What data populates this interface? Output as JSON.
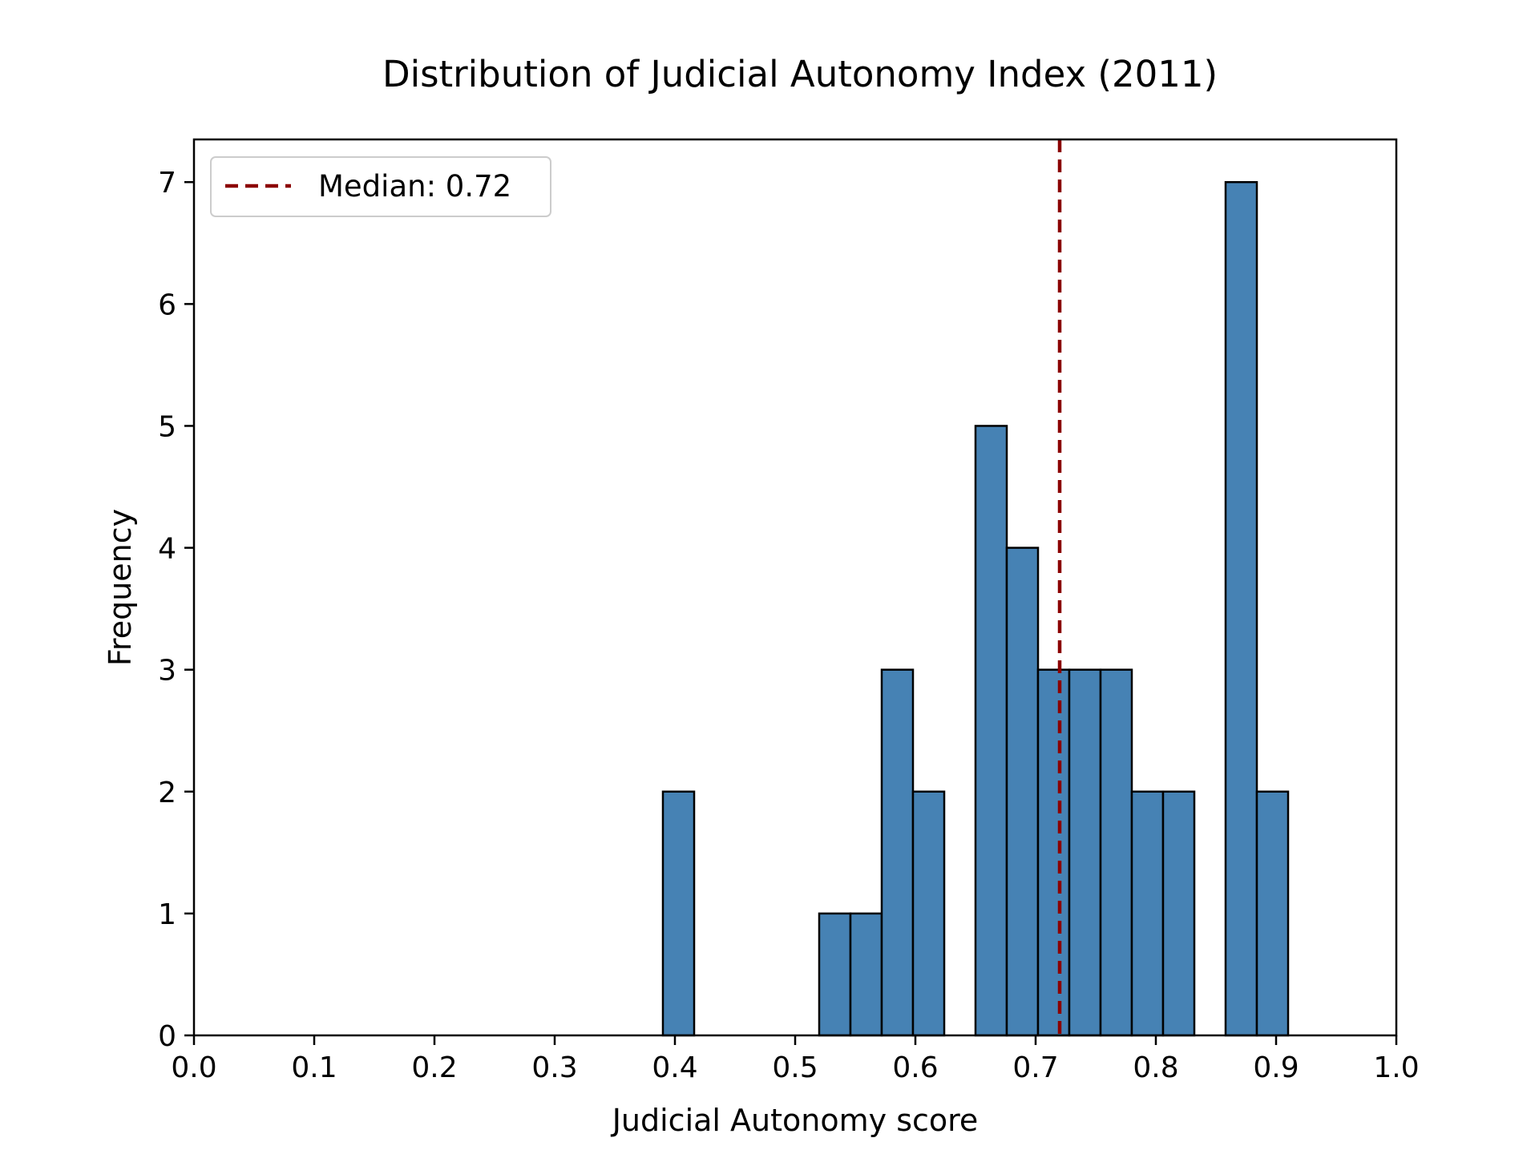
{
  "chart_data": {
    "type": "histogram",
    "title": "Distribution of Judicial Autonomy Index (2011)",
    "xlabel": "Judicial Autonomy score",
    "ylabel": "Frequency",
    "xlim": [
      0.0,
      1.0
    ],
    "ylim": [
      0,
      7.35
    ],
    "xticks": [
      0.0,
      0.1,
      0.2,
      0.3,
      0.4,
      0.5,
      0.6,
      0.7,
      0.8,
      0.9,
      1.0
    ],
    "xtick_labels": [
      "0.0",
      "0.1",
      "0.2",
      "0.3",
      "0.4",
      "0.5",
      "0.6",
      "0.7",
      "0.8",
      "0.9",
      "1.0"
    ],
    "yticks": [
      0,
      1,
      2,
      3,
      4,
      5,
      6,
      7
    ],
    "ytick_labels": [
      "0",
      "1",
      "2",
      "3",
      "4",
      "5",
      "6",
      "7"
    ],
    "bin_edges": [
      0.39,
      0.416,
      0.442,
      0.468,
      0.494,
      0.52,
      0.546,
      0.572,
      0.598,
      0.624,
      0.65,
      0.676,
      0.702,
      0.728,
      0.754,
      0.78,
      0.806,
      0.832,
      0.858,
      0.884,
      0.91
    ],
    "counts": [
      2,
      0,
      0,
      0,
      0,
      1,
      1,
      3,
      2,
      0,
      5,
      4,
      3,
      3,
      3,
      2,
      2,
      0,
      7,
      2
    ],
    "bar_color": "#4682B4",
    "edge_color": "#000000",
    "median": 0.72,
    "median_color": "#8B0000",
    "legend": {
      "entries": [
        "Median: 0.72"
      ],
      "placement": "upper-left"
    },
    "grid": false
  }
}
